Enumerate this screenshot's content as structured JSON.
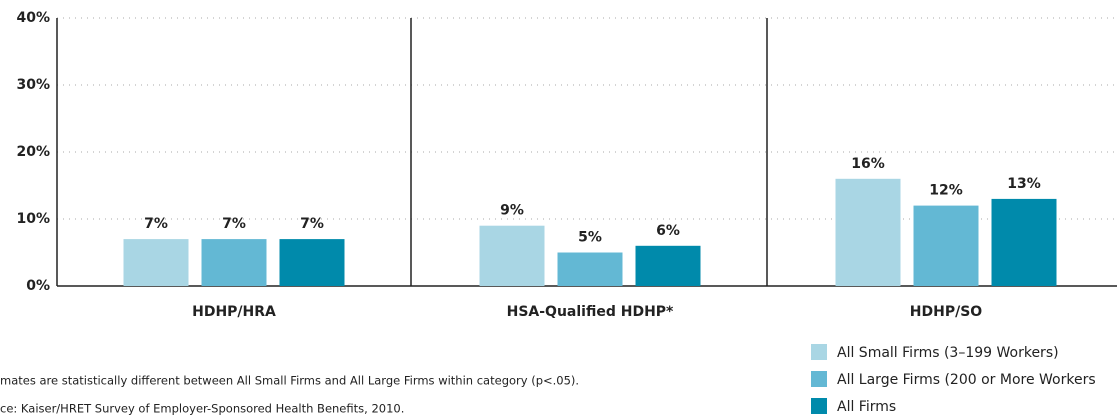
{
  "chart_data": {
    "type": "bar",
    "categories": [
      "HDHP/HRA",
      "HSA-Qualified HDHP*",
      "HDHP/SO"
    ],
    "series": [
      {
        "name": "All Small Firms (3–199 Workers)",
        "color": "#a9d6e4",
        "values": [
          7,
          9,
          16
        ],
        "value_labels": [
          "7%",
          "9%",
          "16%"
        ]
      },
      {
        "name": "All Large Firms (200 or More Workers",
        "color": "#63b8d4",
        "values": [
          7,
          5,
          12
        ],
        "value_labels": [
          "7%",
          "5%",
          "12%"
        ]
      },
      {
        "name": "All Firms",
        "color": "#008aab",
        "values": [
          7,
          6,
          13
        ],
        "value_labels": [
          "7%",
          "6%",
          "13%"
        ]
      }
    ],
    "ylim": [
      0,
      40
    ],
    "yticks": [
      {
        "value": 0,
        "label": "0%"
      },
      {
        "value": 10,
        "label": "10%"
      },
      {
        "value": 20,
        "label": "20%"
      },
      {
        "value": 30,
        "label": "30%"
      },
      {
        "value": 40,
        "label": "40%"
      }
    ],
    "grid": true,
    "notes": [
      "mates are statistically different between All Small Firms and All Large Firms within category (p<.05).",
      "ce:  Kaiser/HRET Survey of Employer-Sponsored Health Benefits, 2010."
    ]
  }
}
